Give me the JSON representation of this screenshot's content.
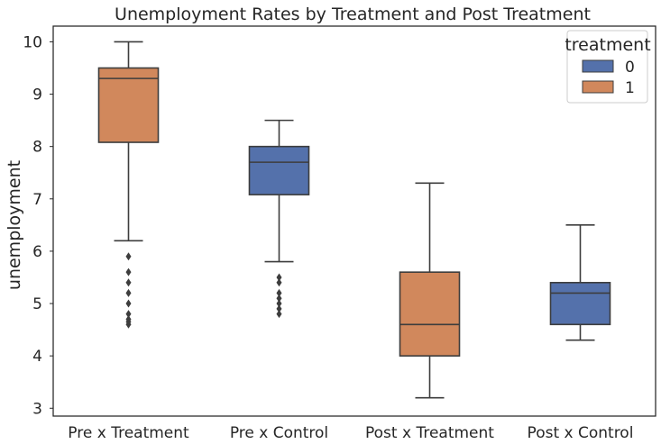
{
  "chart_data": {
    "type": "box",
    "title": "Unemployment Rates by Treatment and Post Treatment",
    "xlabel": "",
    "ylabel": "unemployment",
    "ylim": [
      2.85,
      10.3
    ],
    "yticks": [
      3,
      4,
      5,
      6,
      7,
      8,
      9,
      10
    ],
    "categories": [
      "Pre x Treatment",
      "Pre x Control",
      "Post x Treatment",
      "Post x Control"
    ],
    "grid": false,
    "legend": {
      "title": "treatment",
      "position": "top-right",
      "entries": [
        {
          "label": "0",
          "color": "#5471AB"
        },
        {
          "label": "1",
          "color": "#D1885C"
        }
      ]
    },
    "boxes": [
      {
        "category": "Pre x Treatment",
        "treatment": "1",
        "color": "#D1885C",
        "whislo": 6.2,
        "q1": 8.08,
        "med": 9.3,
        "q3": 9.5,
        "whishi": 10.0,
        "fliers": [
          5.9,
          5.6,
          5.4,
          5.2,
          5.0,
          4.8,
          4.7,
          4.65,
          4.6
        ]
      },
      {
        "category": "Pre x Control",
        "treatment": "0",
        "color": "#5471AB",
        "whislo": 5.8,
        "q1": 7.08,
        "med": 7.7,
        "q3": 8.0,
        "whishi": 8.5,
        "fliers": [
          5.5,
          5.4,
          5.2,
          5.1,
          5.0,
          4.9,
          4.8
        ]
      },
      {
        "category": "Post x Treatment",
        "treatment": "1",
        "color": "#D1885C",
        "whislo": 3.2,
        "q1": 4.0,
        "med": 4.6,
        "q3": 5.6,
        "whishi": 7.3,
        "fliers": []
      },
      {
        "category": "Post x Control",
        "treatment": "0",
        "color": "#5471AB",
        "whislo": 4.3,
        "q1": 4.6,
        "med": 5.2,
        "q3": 5.4,
        "whishi": 6.5,
        "fliers": []
      }
    ]
  }
}
